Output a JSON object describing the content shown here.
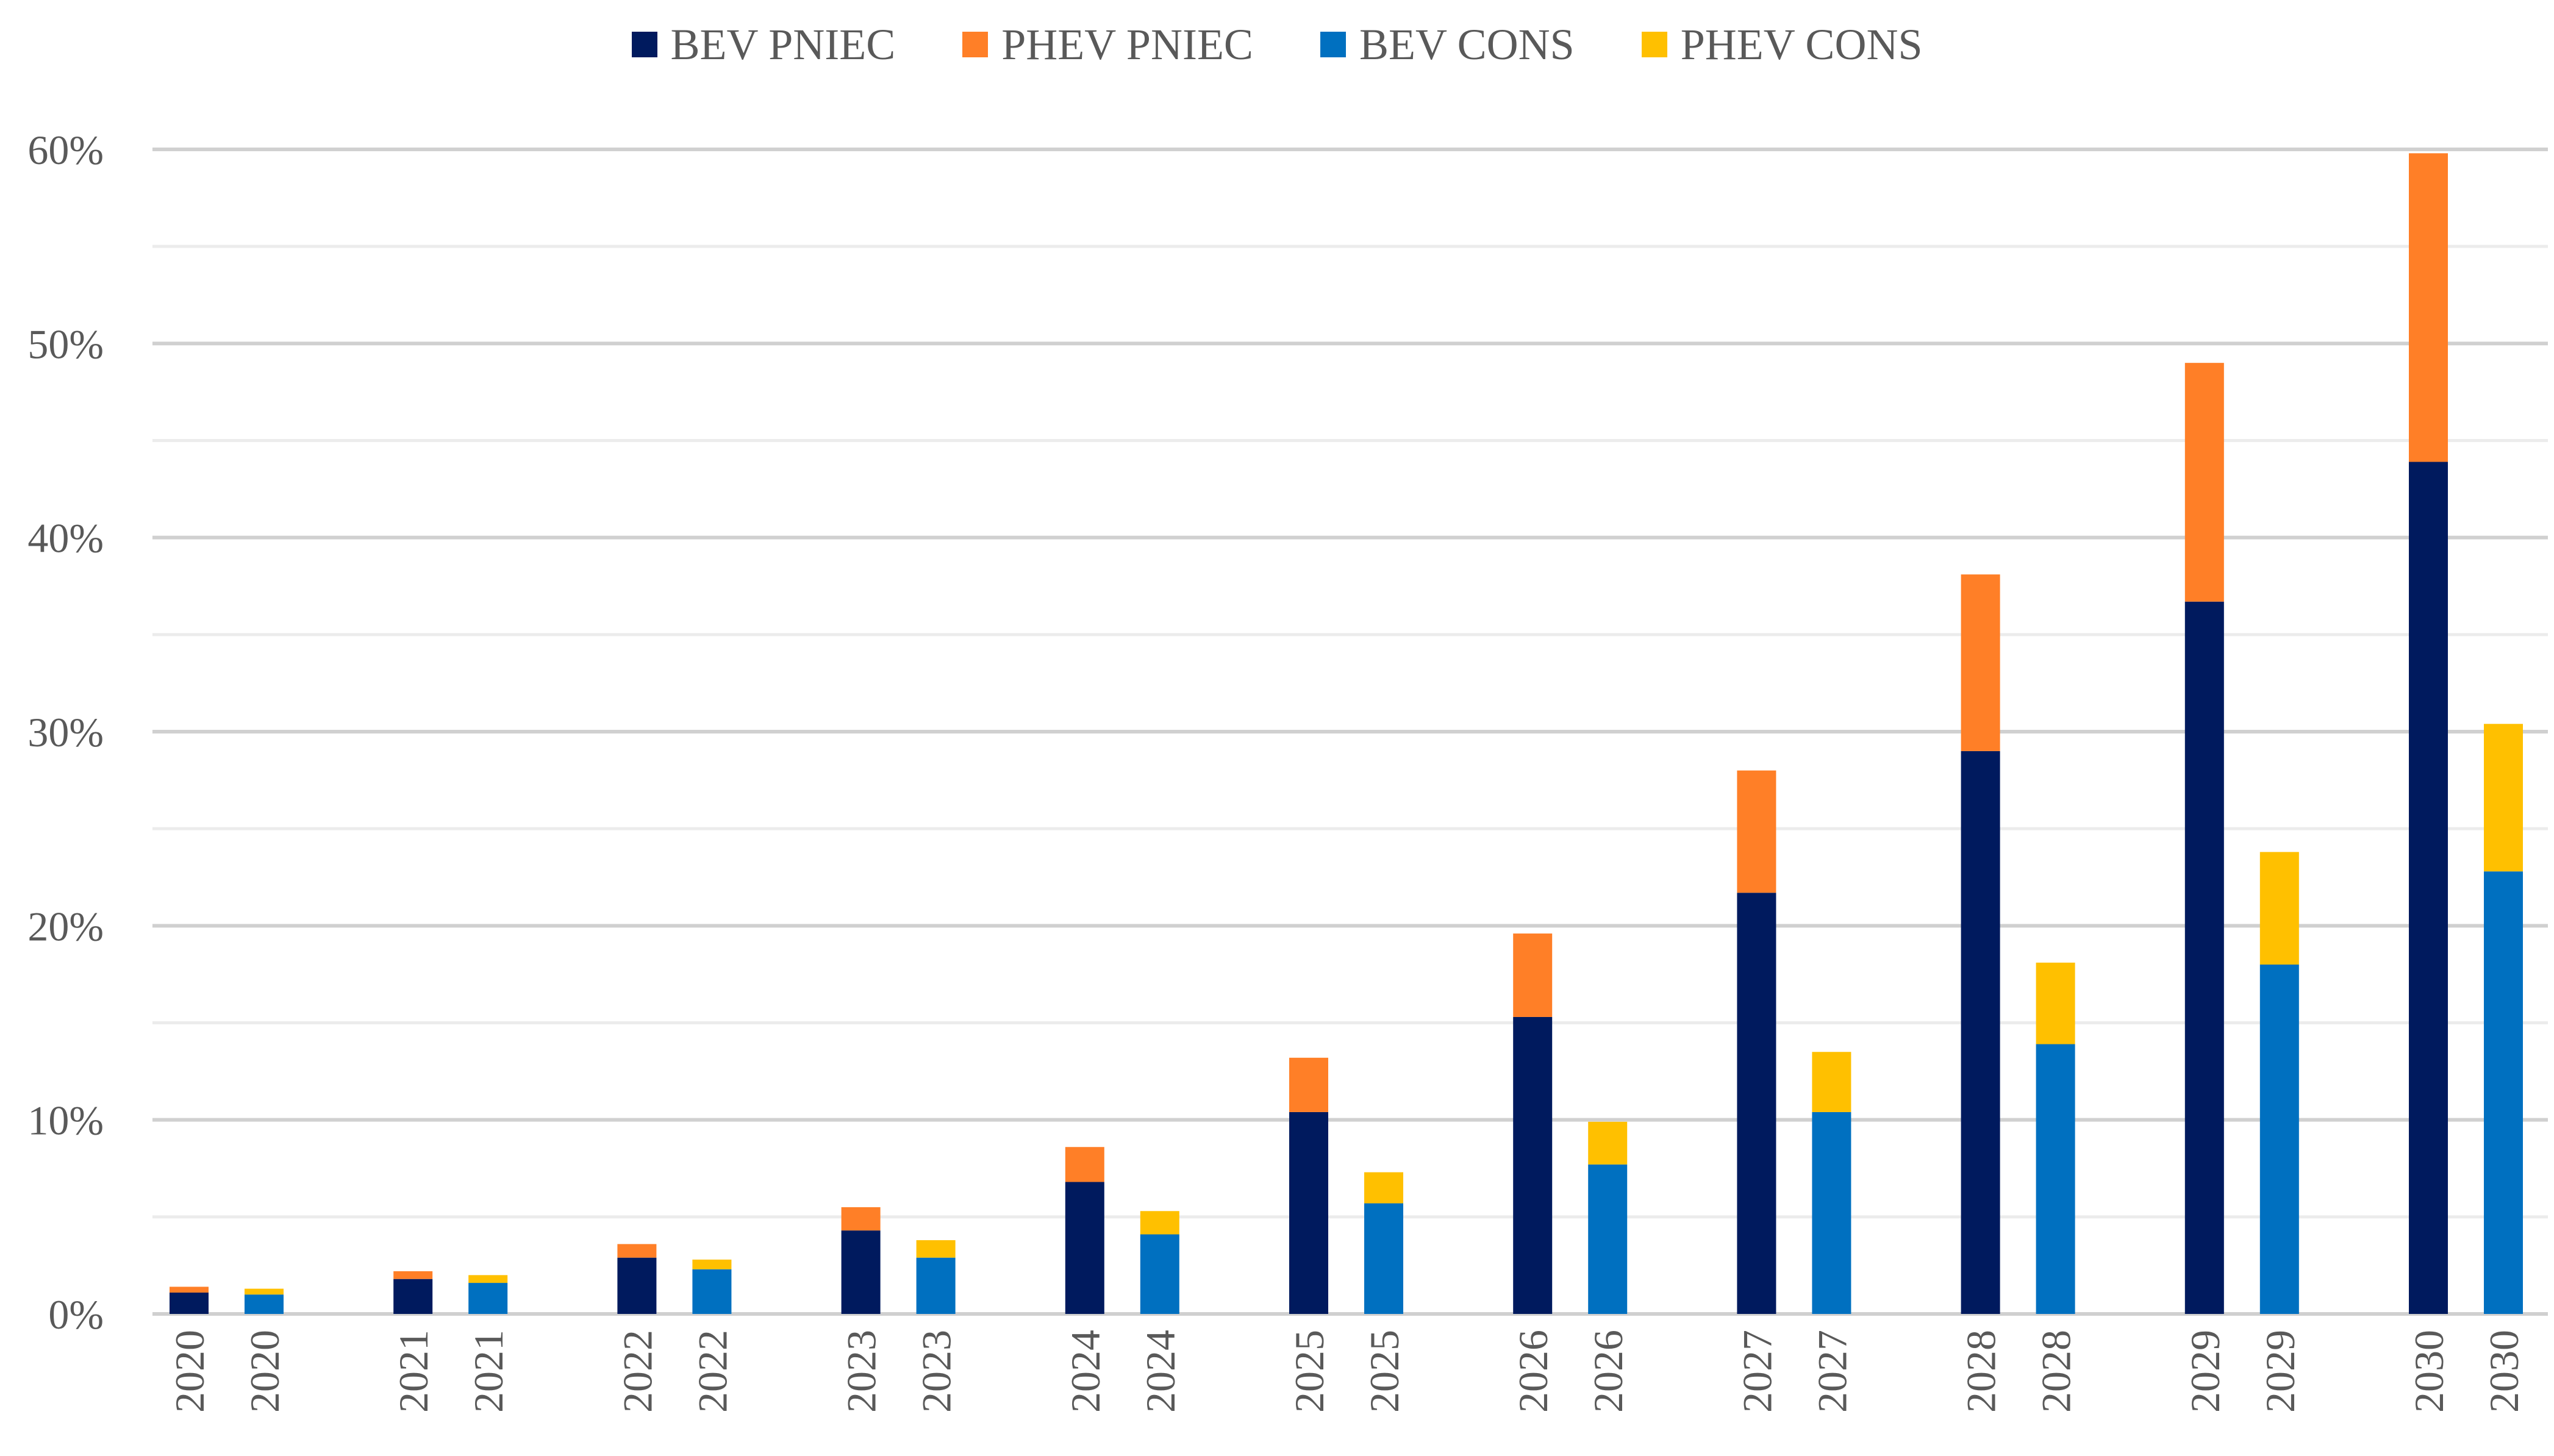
{
  "chart_data": {
    "type": "bar",
    "stacked": true,
    "title": "",
    "xlabel": "",
    "ylabel": "",
    "ylim": [
      0,
      60
    ],
    "yticks": [
      0,
      10,
      20,
      30,
      40,
      50,
      60
    ],
    "ytick_labels": [
      "0%",
      "10%",
      "20%",
      "30%",
      "40%",
      "50%",
      "60%"
    ],
    "legend_position": "top",
    "colors": {
      "bev_pniec": "#001a5e",
      "phev_pniec": "#ff7f27",
      "bev_cons": "#0070c0",
      "phev_cons": "#ffc000",
      "grid_major": "#d0d0d0",
      "grid_minor": "#ececec",
      "text": "#595959"
    },
    "legend": [
      "BEV PNIEC",
      "PHEV PNIEC",
      "BEV CONS",
      "PHEV CONS"
    ],
    "years": [
      "2020",
      "2021",
      "2022",
      "2023",
      "2024",
      "2025",
      "2026",
      "2027",
      "2028",
      "2029",
      "2030"
    ],
    "scenarios": [
      {
        "name": "PNIEC",
        "series": [
          {
            "name": "BEV PNIEC",
            "color_key": "bev_pniec",
            "values": [
              1.1,
              1.8,
              2.9,
              4.3,
              6.8,
              10.4,
              15.3,
              21.7,
              29.0,
              36.7,
              43.9
            ]
          },
          {
            "name": "PHEV PNIEC",
            "color_key": "phev_pniec",
            "values": [
              0.3,
              0.4,
              0.7,
              1.2,
              1.8,
              2.8,
              4.3,
              6.3,
              9.1,
              12.3,
              15.9
            ]
          }
        ]
      },
      {
        "name": "CONS",
        "series": [
          {
            "name": "BEV CONS",
            "color_key": "bev_cons",
            "values": [
              1.0,
              1.6,
              2.3,
              2.9,
              4.1,
              5.7,
              7.7,
              10.4,
              13.9,
              18.0,
              22.8
            ]
          },
          {
            "name": "PHEV CONS",
            "color_key": "phev_cons",
            "values": [
              0.3,
              0.4,
              0.5,
              0.9,
              1.2,
              1.6,
              2.2,
              3.1,
              4.2,
              5.8,
              7.6
            ]
          }
        ]
      }
    ]
  }
}
